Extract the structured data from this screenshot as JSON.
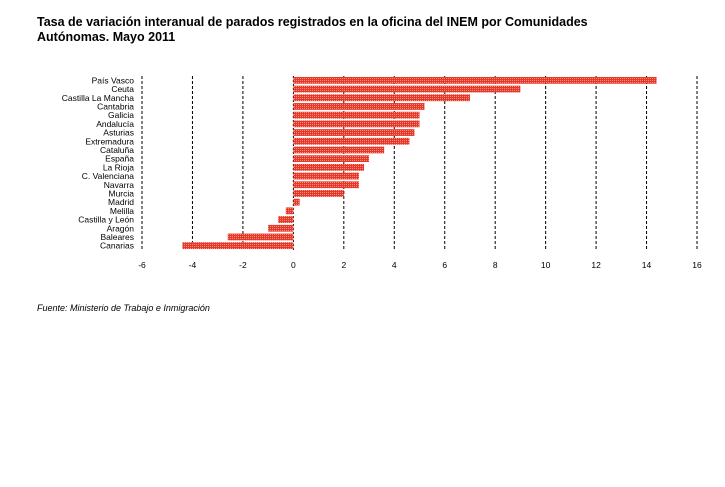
{
  "title": {
    "line1": "Tasa de variación interanual de parados registrados en la oficina del INEM por Comunidades",
    "line2": "Autónomas. Mayo 2011"
  },
  "source": "Fuente: Ministerio de Trabajo e Inmigración",
  "colors": {
    "bar": "#E2392B",
    "bar_stripe": "#ff8a7a",
    "grid": "#000000"
  },
  "chart_data": {
    "type": "bar",
    "orientation": "horizontal",
    "categories": [
      "País Vasco",
      "Ceuta",
      "Castilla La Mancha",
      "Cantabria",
      "Galicia",
      "Andalucía",
      "Asturias",
      "Extremadura",
      "Cataluña",
      "España",
      "La Rioja",
      "C. Valenciana",
      "Navarra",
      "Murcia",
      "Madrid",
      "Melilla",
      "Castilla y León",
      "Aragón",
      "Baleares",
      "Canarias"
    ],
    "values": [
      14.4,
      9.0,
      7.0,
      5.2,
      5.0,
      5.0,
      4.8,
      4.6,
      3.6,
      3.0,
      2.8,
      2.6,
      2.6,
      2.0,
      0.25,
      -0.3,
      -0.6,
      -1.0,
      -2.6,
      -4.4
    ],
    "xlim": [
      -6,
      16
    ],
    "xticks": [
      -6,
      -4,
      -2,
      0,
      2,
      4,
      6,
      8,
      10,
      12,
      14,
      16
    ],
    "gridlines": "vertical dashed",
    "legend": "none",
    "xlabel": "",
    "ylabel": ""
  }
}
